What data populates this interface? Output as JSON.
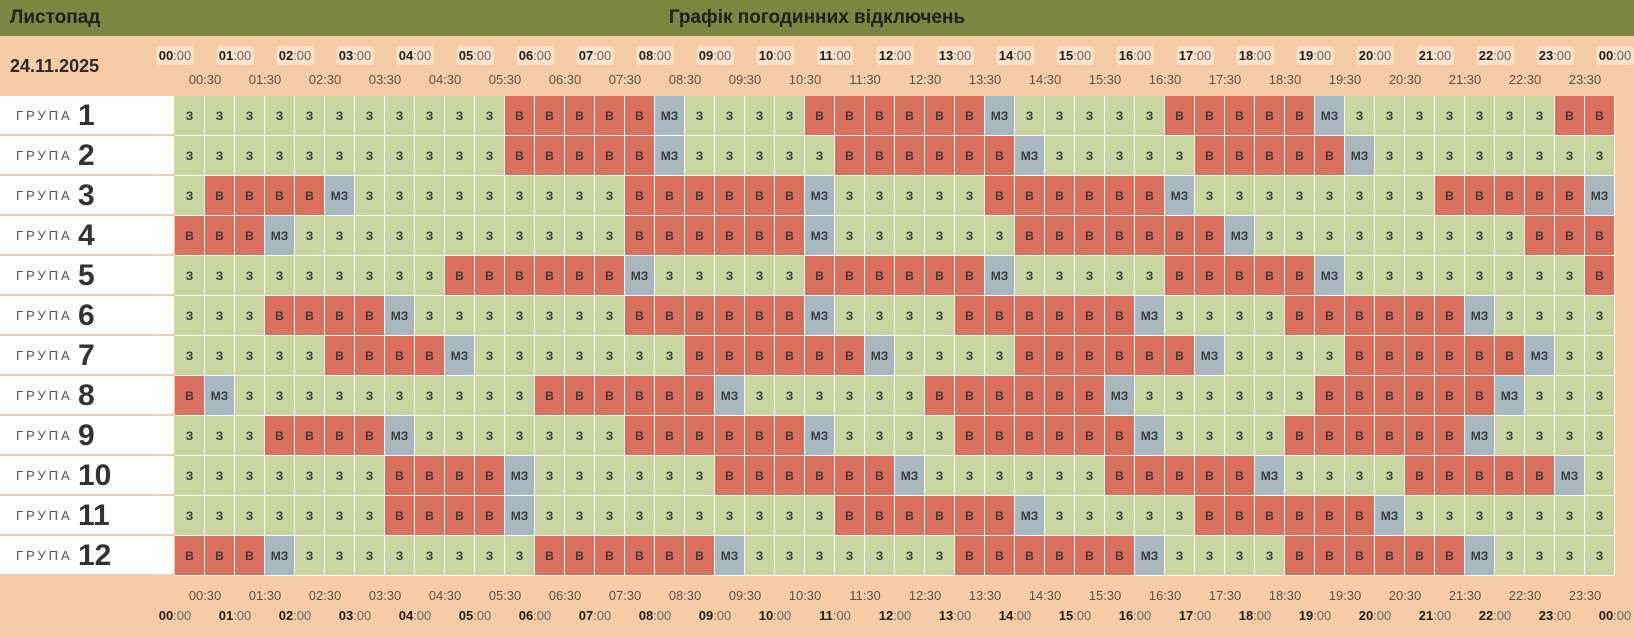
{
  "header": {
    "month": "Листопад",
    "title": "Графік погодинних відключень"
  },
  "date": "24.11.2025",
  "group_word": "ГРУПА",
  "legend": {
    "z": "З",
    "v": "В",
    "m": "МЗ"
  },
  "colors": {
    "z": "#c8d5a0",
    "v": "#da6f5e",
    "m": "#a9b7c1",
    "header": "#7a8740",
    "background": "#f6cca6"
  },
  "hours": [
    "00",
    "01",
    "02",
    "03",
    "04",
    "05",
    "06",
    "07",
    "08",
    "09",
    "10",
    "11",
    "12",
    "13",
    "14",
    "15",
    "16",
    "17",
    "18",
    "19",
    "20",
    "21",
    "22",
    "23",
    "00"
  ],
  "half_hours": [
    "00:30",
    "01:30",
    "02:30",
    "03:30",
    "04:30",
    "05:30",
    "06:30",
    "07:30",
    "08:30",
    "09:30",
    "10:30",
    "11:30",
    "12:30",
    "13:30",
    "14:30",
    "15:30",
    "16:30",
    "17:30",
    "18:30",
    "19:30",
    "20:30",
    "21:30",
    "22:30",
    "23:30"
  ],
  "groups": [
    {
      "number": "1",
      "slots": "zzzzzzzzzzzvvvvvmzzzzvvvvvvmzzzzzvvvvvmzzzzzzzvv"
    },
    {
      "number": "2",
      "slots": "zzzzzzzzzzzvvvvvmzzzzzvvvvvvmzzzzzvvvvvmzzzzzzzz"
    },
    {
      "number": "3",
      "slots": "zvvvvmzzzzzzzzzvvvvvvmzzzzzvvvvvvmzzzzzzzzvvvvvm"
    },
    {
      "number": "4",
      "slots": "vvvmzzzzzzzzzzzvvvvvvmzzzzzzvvvvvvvmzzzzzzzzzvvv"
    },
    {
      "number": "5",
      "slots": "zzzzzzzzzvvvvvvmzzzzzvvvvvvmzzzzzvvvvvmzzzzzzzzv"
    },
    {
      "number": "6",
      "slots": "zzzvvvvmzzzzzzzvvvvvvmzzzzvvvvvvmzzzzvvvvvvmzzzz"
    },
    {
      "number": "7",
      "slots": "zzzzzvvvvmzzzzzzzvvvvvvmzzzzvvvvvvmzzzzvvvvvvmzz"
    },
    {
      "number": "8",
      "slots": "vmzzzzzzzzzzvvvvvvmzzzzzzvvvvvvmzzzzzzvvvvvvmzzz"
    },
    {
      "number": "9",
      "slots": "zzzvvvvmzzzzzzzvvvvvvmzzzzvvvvvvmzzzzvvvvvvmzzzz"
    },
    {
      "number": "10",
      "slots": "zzzzzzzvvvvmzzzzzzvvvvvvmzzzzzzvvvvvmzzzzvvvvvmz"
    },
    {
      "number": "11",
      "slots": "zzzzzzzvvvvmzzzzzzzzzzvvvvvvmzzzzzvvvvvvmzzzzzzz"
    },
    {
      "number": "12",
      "slots": "vvvmzzzzzzzzvvvvvvmzzzzzzzvvvvvvmzzzzvvvvvvmzzzz"
    }
  ]
}
